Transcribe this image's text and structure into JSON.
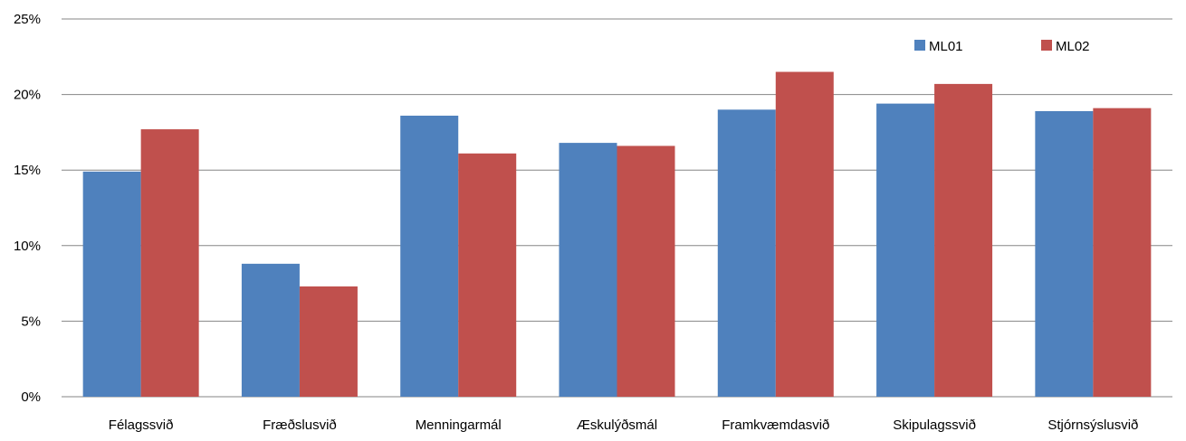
{
  "chart_data": {
    "type": "bar",
    "categories": [
      "Félagssvið",
      "Fræðslusvið",
      "Menningarmál",
      "Æskulýðsmál",
      "Framkvæmdasvið",
      "Skipulagssvið",
      "Stjórnsýslusvið"
    ],
    "series": [
      {
        "name": "ML01",
        "values": [
          14.9,
          8.8,
          18.6,
          16.8,
          19.0,
          19.4,
          18.9
        ],
        "color": "#4f81bd"
      },
      {
        "name": "ML02",
        "values": [
          17.7,
          7.3,
          16.1,
          16.6,
          21.5,
          20.7,
          19.1
        ],
        "color": "#c0504d"
      }
    ],
    "yticks": [
      "0%",
      "5%",
      "10%",
      "15%",
      "20%",
      "25%"
    ],
    "ylim": [
      0,
      25
    ],
    "title": "",
    "xlabel": "",
    "ylabel": "",
    "grid": true,
    "legend_position": "top-right"
  }
}
